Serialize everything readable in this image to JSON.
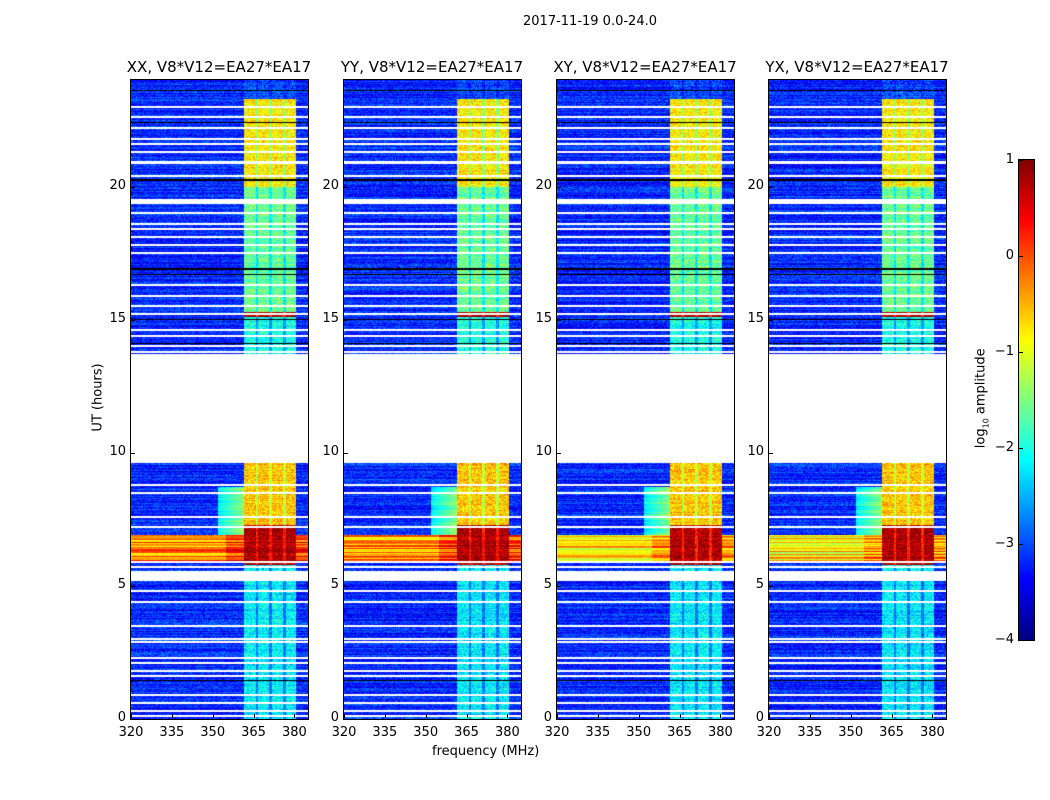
{
  "chart_data": {
    "type": "heatmap",
    "title": "2017-11-19 0.0-24.0",
    "xlabel": "frequency (MHz)",
    "ylabel": "UT (hours)",
    "xlim": [
      320,
      385
    ],
    "ylim": [
      0,
      24
    ],
    "xticks": [
      "320",
      "335",
      "350",
      "365",
      "380"
    ],
    "xtick_values": [
      320,
      335,
      350,
      365,
      380
    ],
    "yticks": [
      "0",
      "5",
      "10",
      "15",
      "20"
    ],
    "ytick_values": [
      0,
      5,
      10,
      15,
      20
    ],
    "colormap": "jet",
    "colorbar": {
      "label_main": "log",
      "label_sub": "10",
      "label_rest": " amplitude",
      "range": [
        -4,
        1
      ],
      "ticks": [
        "1",
        "0",
        "−1",
        "−2",
        "−3",
        "−4"
      ],
      "tick_values": [
        1,
        0,
        -1,
        -2,
        -3,
        -4
      ]
    },
    "panels": [
      {
        "title": "XX, V8*V12=EA27*EA17",
        "rfi_level": 0.1
      },
      {
        "title": "YY, V8*V12=EA27*EA17",
        "rfi_level": 0.0
      },
      {
        "title": "XY, V8*V12=EA27*EA17",
        "rfi_level": -0.3
      },
      {
        "title": "YX, V8*V12=EA27*EA17",
        "rfi_level": -0.4
      }
    ],
    "data_gap_hours": [
      9.6,
      13.7
    ],
    "background_level": -3.2,
    "bright_subbands_mhz": [
      [
        361.5,
        365.8
      ],
      [
        366.8,
        370.8
      ],
      [
        371.8,
        375.8
      ],
      [
        376.8,
        380.5
      ]
    ],
    "subband_levels_by_time": [
      {
        "from": 0,
        "to": 5.8,
        "level": -2.2
      },
      {
        "from": 5.8,
        "to": 7.3,
        "level": 0.8
      },
      {
        "from": 7.3,
        "to": 9.6,
        "level": -0.6
      },
      {
        "from": 13.7,
        "to": 15.1,
        "level": -2.0
      },
      {
        "from": 15.1,
        "to": 15.3,
        "level": 0.8
      },
      {
        "from": 15.3,
        "to": 20.0,
        "level": -1.6
      },
      {
        "from": 20.0,
        "to": 23.3,
        "level": -0.8
      },
      {
        "from": 23.3,
        "to": 24.0,
        "level": -3.0
      }
    ],
    "broadband_rfi_hours": [
      5.9,
      6.9
    ],
    "flagged_times": [
      0.1,
      0.3,
      0.6,
      0.9,
      1.6,
      1.8,
      2.1,
      2.3,
      2.9,
      3.0,
      3.5,
      4.4,
      4.8,
      5.3,
      5.4,
      5.5,
      5.7,
      5.9,
      7.2,
      7.6,
      8.5,
      8.8,
      13.8,
      14.0,
      14.4,
      14.6,
      15.2,
      15.5,
      15.9,
      16.3,
      17.5,
      17.8,
      18.1,
      18.4,
      18.6,
      19.0,
      19.4,
      19.5,
      20.4,
      20.9,
      21.3,
      21.6,
      21.8,
      22.2,
      22.6,
      23.0
    ],
    "dark_lines": [
      1.45,
      14.1,
      15.0,
      16.7,
      16.9,
      20.25,
      22.4,
      23.6
    ]
  }
}
